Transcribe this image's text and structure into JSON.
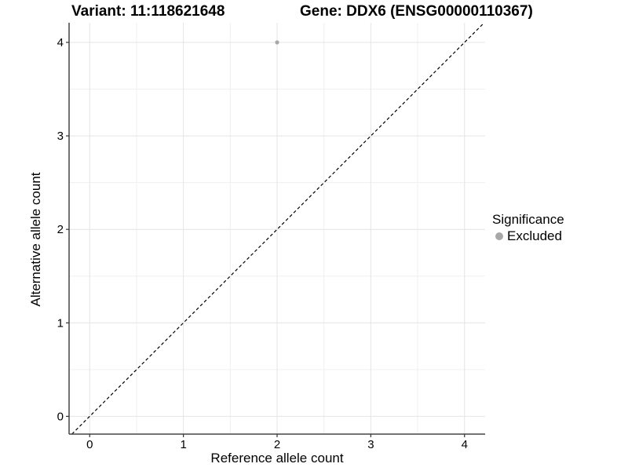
{
  "chart_data": {
    "type": "scatter",
    "title_left": "Variant: 11:118621648",
    "title_right": "Gene: DDX6 (ENSG00000110367)",
    "xlabel": "Reference allele count",
    "ylabel": "Alternative allele count",
    "xlim": [
      -0.22,
      4.22
    ],
    "ylim": [
      -0.19,
      4.21
    ],
    "x_ticks": [
      0,
      1,
      2,
      3,
      4
    ],
    "y_ticks": [
      0,
      1,
      2,
      3,
      4
    ],
    "x_minor_ticks": [
      0.5,
      1.5,
      2.5,
      3.5
    ],
    "y_minor_ticks": [
      0.5,
      1.5,
      2.5,
      3.5
    ],
    "grid": true,
    "points": [
      {
        "x": 2,
        "y": 4,
        "series": "Excluded"
      }
    ],
    "identity_line": {
      "slope": 1,
      "intercept": 0,
      "style": "dashed",
      "color": "#000000"
    },
    "legend": {
      "title": "Significance",
      "position": "right",
      "entries": [
        {
          "label": "Excluded",
          "color": "#a8a8a8"
        }
      ]
    },
    "colors": {
      "grid_major": "#e4e4e4",
      "grid_minor": "#f0f0f0",
      "axis": "#454545",
      "tick": "#333333",
      "text": "#000000"
    }
  }
}
